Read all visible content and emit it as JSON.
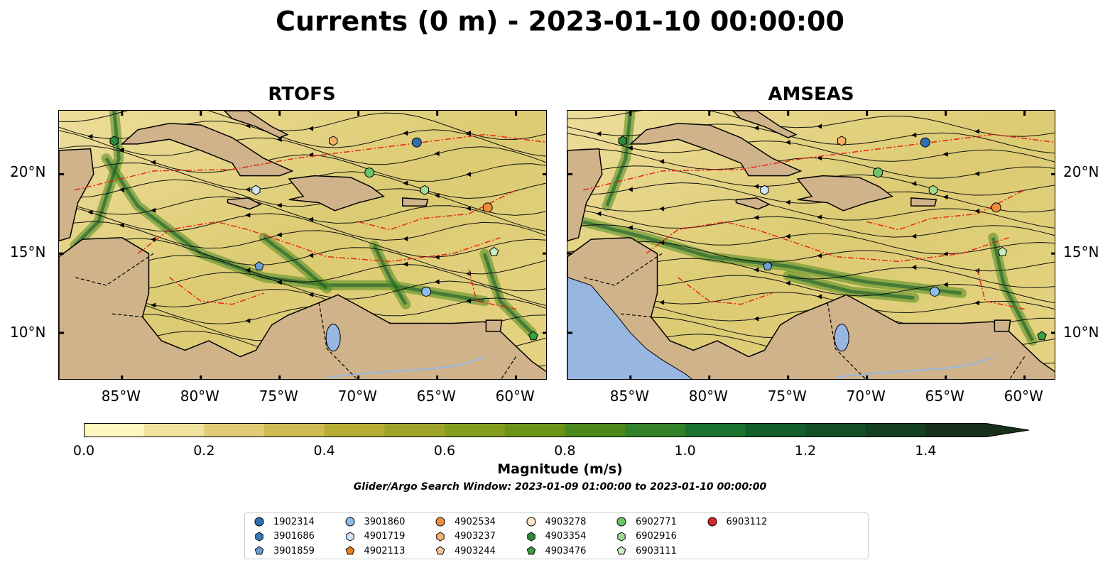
{
  "title": "Currents (0 m) - 2023-01-10 00:00:00",
  "panels": [
    {
      "title": "RTOFS"
    },
    {
      "title": "AMSEAS"
    }
  ],
  "axes": {
    "lon_labels": [
      "85°W",
      "80°W",
      "75°W",
      "70°W",
      "65°W",
      "60°W"
    ],
    "lat_labels": [
      "20°N",
      "15°N",
      "10°N"
    ],
    "lon_range": [
      -89,
      -58
    ],
    "lat_range": [
      7,
      24
    ]
  },
  "colorbar": {
    "label": "Magnitude (m/s)",
    "ticks": [
      "0.0",
      "0.2",
      "0.4",
      "0.6",
      "0.8",
      "1.0",
      "1.2",
      "1.4"
    ],
    "range": [
      0.0,
      1.5
    ],
    "extend": "max",
    "colors": [
      "#fff6c0",
      "#f2e2a0",
      "#e2cc76",
      "#d0ba52",
      "#b8ad35",
      "#9ea428",
      "#839e1e",
      "#6a9519",
      "#4c8a1e",
      "#33822b",
      "#1b732f",
      "#145e2d",
      "#124f26",
      "#143f22",
      "#17301c"
    ]
  },
  "search_window": "Glider/Argo Search Window: 2023-01-09 01:00:00 to 2023-01-10 00:00:00",
  "legend": [
    {
      "id": "1902314",
      "shape": "circle",
      "color": "#2f6fb0"
    },
    {
      "id": "3901686",
      "shape": "hexagon",
      "color": "#3a78c2"
    },
    {
      "id": "3901859",
      "shape": "pentagon",
      "color": "#6b9fd6"
    },
    {
      "id": "3901860",
      "shape": "circle",
      "color": "#8cbde8"
    },
    {
      "id": "4901719",
      "shape": "hexagon",
      "color": "#cfe4f7"
    },
    {
      "id": "4902113",
      "shape": "pentagon",
      "color": "#e8801c"
    },
    {
      "id": "4902534",
      "shape": "circle",
      "color": "#f08e3a"
    },
    {
      "id": "4903237",
      "shape": "hexagon",
      "color": "#f6b26b"
    },
    {
      "id": "4903244",
      "shape": "pentagon",
      "color": "#f7c79a"
    },
    {
      "id": "4903278",
      "shape": "circle",
      "color": "#fde3c8"
    },
    {
      "id": "4903354",
      "shape": "hexagon",
      "color": "#2e8a3a"
    },
    {
      "id": "4903476",
      "shape": "pentagon",
      "color": "#3aa044"
    },
    {
      "id": "6902771",
      "shape": "circle",
      "color": "#6cc46c"
    },
    {
      "id": "6902916",
      "shape": "hexagon",
      "color": "#9fdc94"
    },
    {
      "id": "6903111",
      "shape": "pentagon",
      "color": "#c8eec0"
    },
    {
      "id": "6903112",
      "shape": "circle",
      "color": "#d62728"
    }
  ],
  "floats": [
    {
      "id": "1902314",
      "lon": -66.3,
      "lat": 22.0
    },
    {
      "id": "4903237",
      "lon": -71.6,
      "lat": 22.1
    },
    {
      "id": "4903354",
      "lon": -85.5,
      "lat": 22.1
    },
    {
      "id": "6902771",
      "lon": -69.3,
      "lat": 20.1
    },
    {
      "id": "4901719",
      "lon": -76.5,
      "lat": 19.0
    },
    {
      "id": "6902916",
      "lon": -65.8,
      "lat": 19.0
    },
    {
      "id": "4902534",
      "lon": -61.8,
      "lat": 17.9
    },
    {
      "id": "6903111",
      "lon": -61.4,
      "lat": 15.1
    },
    {
      "id": "3901859",
      "lon": -76.3,
      "lat": 14.2
    },
    {
      "id": "3901860",
      "lon": -65.7,
      "lat": 12.6
    },
    {
      "id": "4903476",
      "lon": -58.9,
      "lat": 9.8
    }
  ],
  "land_color": "#d0b38a",
  "water_color": "#97b6e2",
  "boundary_color": "#e8251c"
}
